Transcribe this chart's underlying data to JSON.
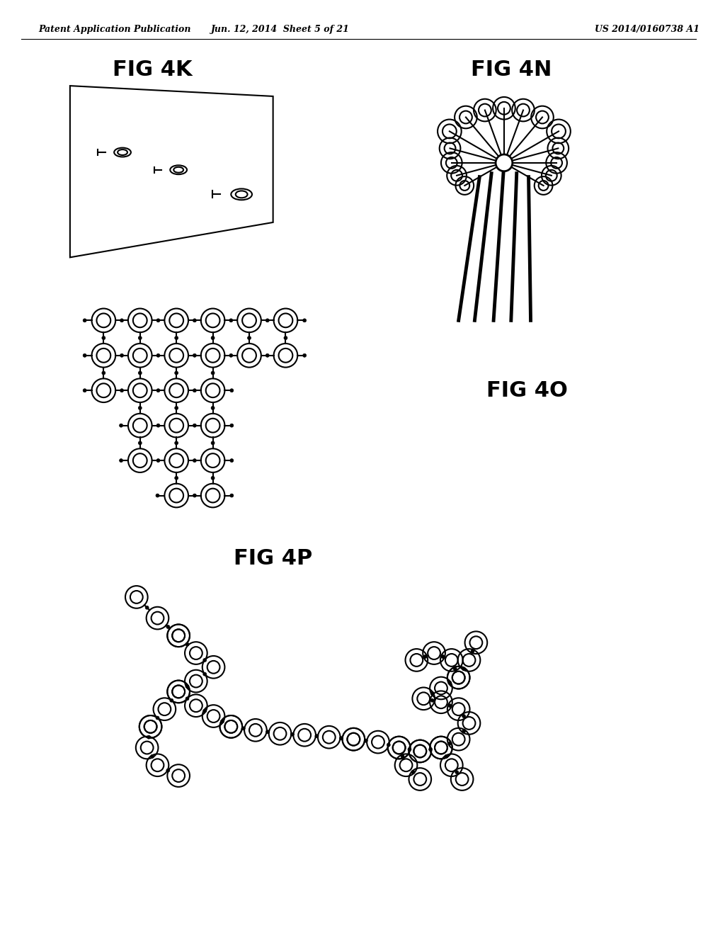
{
  "background_color": "#ffffff",
  "header_text": "Patent Application Publication",
  "header_date": "Jun. 12, 2014  Sheet 5 of 21",
  "header_patent": "US 2014/0160738 A1",
  "header_fontsize": 9,
  "fig4k_label": "FIG 4K",
  "fig4n_label": "FIG 4N",
  "fig4o_label": "FIG 4O",
  "fig4p_label": "FIG 4P",
  "label_fontsize": 22,
  "label_fontweight": "bold"
}
